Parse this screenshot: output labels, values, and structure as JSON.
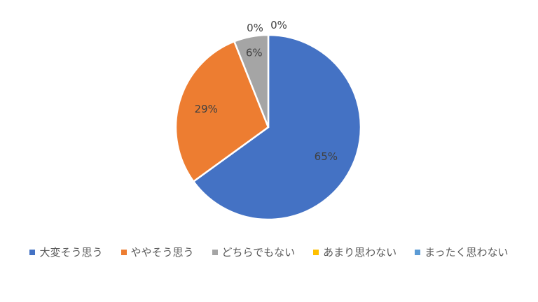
{
  "chart_data": {
    "type": "pie",
    "categories": [
      "大変そう思う",
      "ややそう思う",
      "どちらでもない",
      "あまり思わない",
      "まったく思わない"
    ],
    "values": [
      65,
      29,
      6,
      0,
      0
    ],
    "data_labels": [
      "65%",
      "29%",
      "6%",
      "0%",
      "0%"
    ],
    "colors": [
      "#4472C4",
      "#ED7D31",
      "#A5A5A5",
      "#FFC000",
      "#5B9BD5"
    ],
    "start_angle": "top, clockwise",
    "legend_position": "bottom"
  }
}
